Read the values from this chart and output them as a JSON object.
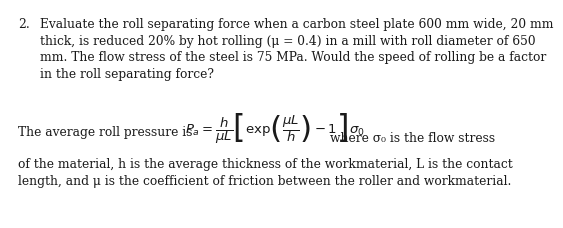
{
  "number": "2.",
  "line1": "Evaluate the roll separating force when a carbon steel plate 600 mm wide, 20 mm",
  "line2": "thick, is reduced 20% by hot rolling (μ = 0.4) in a mill with roll diameter of 650",
  "line3": "mm. The flow stress of the steel is 75 MPa. Would the speed of rolling be a factor",
  "line4": "in the roll separating force?",
  "avg_label": "The average roll pressure is",
  "where_text": "where σ₀ is the flow stress",
  "line5": "of the material, h is the average thickness of the workmaterial, L is the contact",
  "line6": "length, and μ is the coefficient of friction between the roller and workmaterial.",
  "formula": "$P_a = \\dfrac{h}{\\mu L}\\left[\\exp\\!\\left(\\dfrac{\\mu L}{h}\\right)-1\\right]\\sigma_0$",
  "bg_color": "#ffffff",
  "text_color": "#1a1a1a",
  "fontsize": 8.8,
  "formula_fontsize": 9.5
}
